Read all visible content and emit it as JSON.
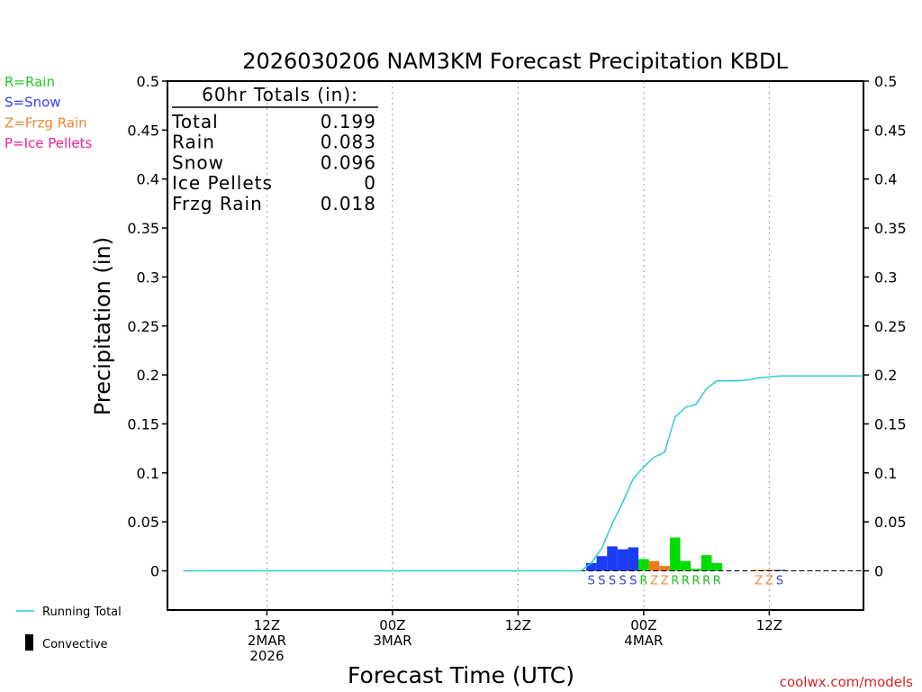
{
  "chart_data": {
    "type": "bar",
    "title": "2026030206 NAM3KM Forecast Precipitation KBDL",
    "ylabel": "Precipitation (in)",
    "xlabel": "Forecast Time (UTC)",
    "ylim": [
      -0.04,
      0.5
    ],
    "xlim": [
      -3.5,
      63
    ],
    "yticks": [
      0,
      0.05,
      0.1,
      0.15,
      0.2,
      0.25,
      0.3,
      0.35,
      0.4,
      0.45,
      0.5
    ],
    "ytick_labels": [
      "0",
      "0.05",
      "0.1",
      "0.15",
      "0.2",
      "0.25",
      "0.3",
      "0.35",
      "0.4",
      "0.45",
      "0.5"
    ],
    "xticks": [
      {
        "hour": 6,
        "lines": [
          "12Z",
          "2MAR",
          "2026"
        ]
      },
      {
        "hour": 18,
        "lines": [
          "00Z",
          "3MAR"
        ]
      },
      {
        "hour": 30,
        "lines": [
          "12Z"
        ]
      },
      {
        "hour": 42,
        "lines": [
          "00Z",
          "4MAR"
        ]
      },
      {
        "hour": 54,
        "lines": [
          "12Z"
        ]
      }
    ],
    "legend_types": [
      {
        "text": "R=Rain",
        "color": "#22cc22"
      },
      {
        "text": "S=Snow",
        "color": "#3344ee"
      },
      {
        "text": "Z=Frzg Rain",
        "color": "#ee8833"
      },
      {
        "text": "P=Ice Pellets",
        "color": "#ee2299"
      }
    ],
    "legend_lines": [
      {
        "text": "Running Total",
        "color": "#22c8d4"
      },
      {
        "text": "Convective",
        "color": "#000000"
      }
    ],
    "totals": {
      "header": "60hr Totals (in):",
      "rows": [
        {
          "label": "Total",
          "value": "0.199"
        },
        {
          "label": "Rain",
          "value": "0.083"
        },
        {
          "label": "Snow",
          "value": "0.096"
        },
        {
          "label": "Ice Pellets",
          "value": "0"
        },
        {
          "label": "Frzg Rain",
          "value": "0.018"
        }
      ]
    },
    "type_colors": {
      "S": "#1c3cf4",
      "R": "#00dd00",
      "Z": "#ee7b22",
      "P": "#ee2299"
    },
    "label_colors": {
      "S": "#3344cc",
      "R": "#22bb22",
      "Z": "#ee8833",
      "P": "#ee2299"
    },
    "series": [
      {
        "name": "Hourly Precipitation",
        "points": [
          {
            "hour": 37,
            "value": 0.008,
            "ptype": "S"
          },
          {
            "hour": 38,
            "value": 0.015,
            "ptype": "S"
          },
          {
            "hour": 39,
            "value": 0.025,
            "ptype": "S"
          },
          {
            "hour": 40,
            "value": 0.022,
            "ptype": "S"
          },
          {
            "hour": 41,
            "value": 0.024,
            "ptype": "S"
          },
          {
            "hour": 42,
            "value": 0.012,
            "ptype": "R"
          },
          {
            "hour": 43,
            "value": 0.01,
            "ptype": "Z"
          },
          {
            "hour": 44,
            "value": 0.005,
            "ptype": "Z"
          },
          {
            "hour": 45,
            "value": 0.034,
            "ptype": "R"
          },
          {
            "hour": 46,
            "value": 0.01,
            "ptype": "R"
          },
          {
            "hour": 47,
            "value": 0.002,
            "ptype": "R"
          },
          {
            "hour": 48,
            "value": 0.016,
            "ptype": "R"
          },
          {
            "hour": 49,
            "value": 0.008,
            "ptype": "R"
          },
          {
            "hour": 53,
            "value": 0.001,
            "ptype": "Z"
          },
          {
            "hour": 54,
            "value": 0.001,
            "ptype": "Z"
          },
          {
            "hour": 55,
            "value": 0.001,
            "ptype": "S"
          }
        ]
      },
      {
        "name": "Running Total",
        "points": [
          {
            "hour": -2,
            "value": 0
          },
          {
            "hour": 36,
            "value": 0
          },
          {
            "hour": 37,
            "value": 0.008
          },
          {
            "hour": 38,
            "value": 0.023
          },
          {
            "hour": 39,
            "value": 0.048
          },
          {
            "hour": 40,
            "value": 0.07
          },
          {
            "hour": 41,
            "value": 0.094
          },
          {
            "hour": 42,
            "value": 0.106
          },
          {
            "hour": 43,
            "value": 0.116
          },
          {
            "hour": 44,
            "value": 0.121
          },
          {
            "hour": 45,
            "value": 0.157
          },
          {
            "hour": 46,
            "value": 0.167
          },
          {
            "hour": 47,
            "value": 0.17
          },
          {
            "hour": 48,
            "value": 0.186
          },
          {
            "hour": 49,
            "value": 0.194
          },
          {
            "hour": 50,
            "value": 0.194
          },
          {
            "hour": 51,
            "value": 0.194
          },
          {
            "hour": 52,
            "value": 0.195
          },
          {
            "hour": 53,
            "value": 0.197
          },
          {
            "hour": 54,
            "value": 0.198
          },
          {
            "hour": 55,
            "value": 0.199
          },
          {
            "hour": 63,
            "value": 0.199
          }
        ]
      }
    ],
    "type_labels": [
      {
        "hour": 37,
        "ptype": "S"
      },
      {
        "hour": 38,
        "ptype": "S"
      },
      {
        "hour": 39,
        "ptype": "S"
      },
      {
        "hour": 40,
        "ptype": "S"
      },
      {
        "hour": 41,
        "ptype": "S"
      },
      {
        "hour": 42,
        "ptype": "R"
      },
      {
        "hour": 43,
        "ptype": "Z"
      },
      {
        "hour": 44,
        "ptype": "Z"
      },
      {
        "hour": 45,
        "ptype": "R"
      },
      {
        "hour": 46,
        "ptype": "R"
      },
      {
        "hour": 47,
        "ptype": "R"
      },
      {
        "hour": 48,
        "ptype": "R"
      },
      {
        "hour": 49,
        "ptype": "R"
      },
      {
        "hour": 53,
        "ptype": "Z"
      },
      {
        "hour": 54,
        "ptype": "Z"
      },
      {
        "hour": 55,
        "ptype": "S"
      }
    ]
  },
  "footer": {
    "credit": "coolwx.com/models",
    "credit_color": "#dd2222"
  }
}
